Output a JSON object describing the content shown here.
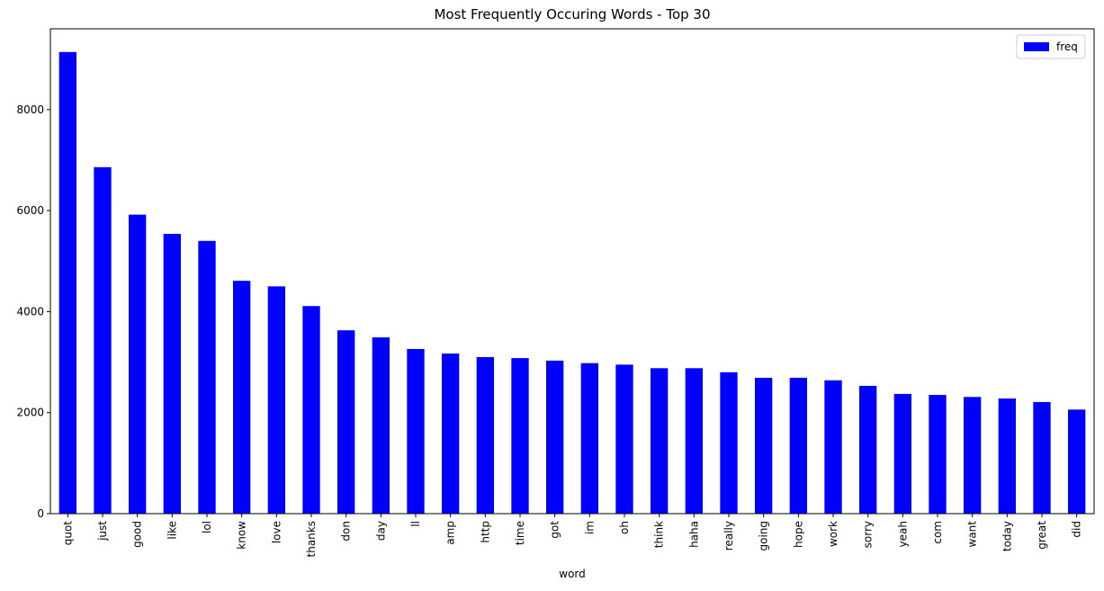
{
  "chart_data": {
    "type": "bar",
    "title": "Most Frequently Occuring Words - Top 30",
    "xlabel": "word",
    "ylabel": "",
    "ylim": [
      0,
      9600
    ],
    "yticks": [
      0,
      2000,
      4000,
      6000,
      8000
    ],
    "categories": [
      "quot",
      "just",
      "good",
      "like",
      "lol",
      "know",
      "love",
      "thanks",
      "don",
      "day",
      "ll",
      "amp",
      "http",
      "time",
      "got",
      "im",
      "oh",
      "think",
      "haha",
      "really",
      "going",
      "hope",
      "work",
      "sorry",
      "yeah",
      "com",
      "want",
      "today",
      "great",
      "did"
    ],
    "series": [
      {
        "name": "freq",
        "color": "#0000ff",
        "values": [
          9140,
          6860,
          5920,
          5540,
          5400,
          4610,
          4500,
          4110,
          3630,
          3490,
          3260,
          3170,
          3100,
          3080,
          3030,
          2980,
          2950,
          2880,
          2880,
          2800,
          2690,
          2690,
          2640,
          2530,
          2370,
          2350,
          2310,
          2280,
          2210,
          2060
        ]
      }
    ],
    "legend": {
      "position": "top-right",
      "entries": [
        "freq"
      ]
    },
    "grid": false
  }
}
